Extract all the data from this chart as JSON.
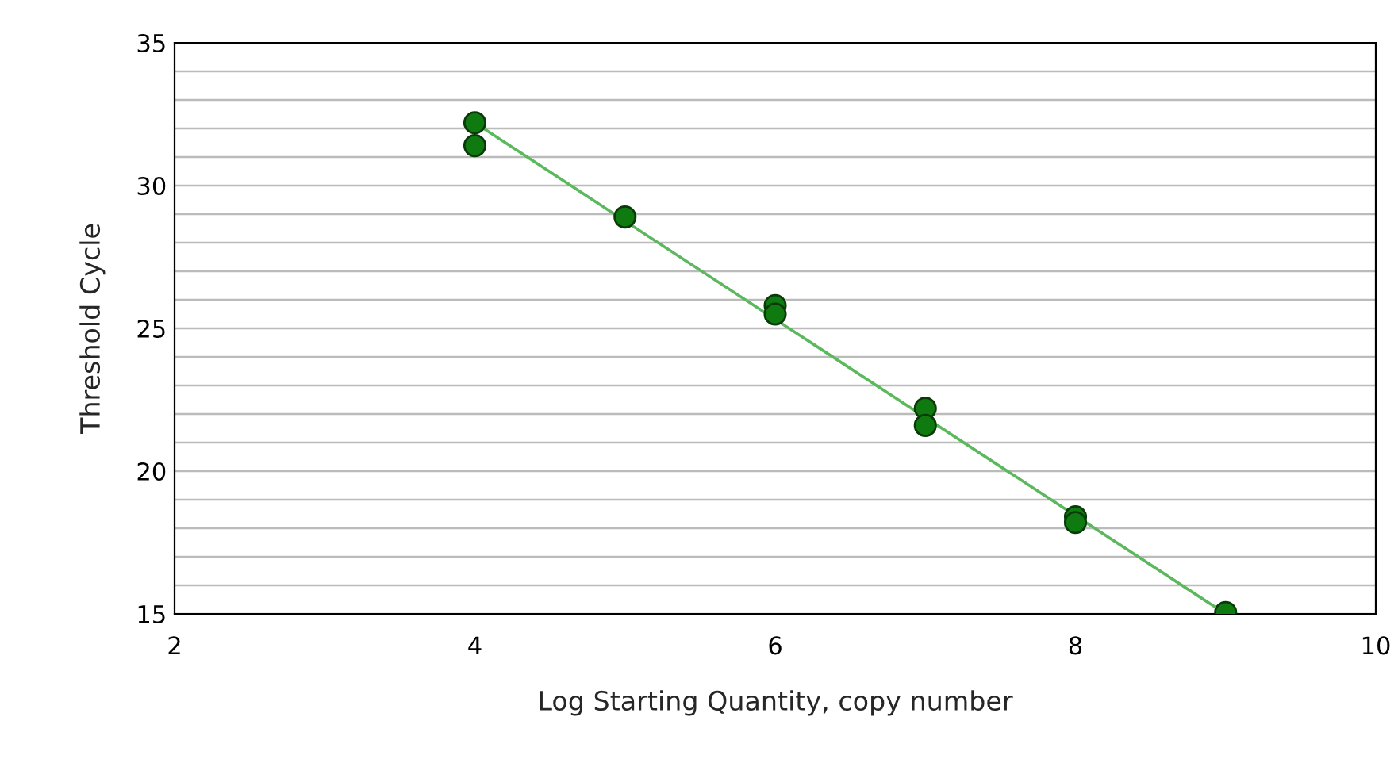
{
  "chart_data": {
    "type": "scatter",
    "xlabel": "Log Starting Quantity, copy number",
    "ylabel": "Threshold Cycle",
    "xlim": [
      2,
      10
    ],
    "xticks": [
      2,
      4,
      6,
      8,
      10
    ],
    "ylim": [
      15,
      35
    ],
    "yticks": [
      15,
      {
        "value": 16,
        "label": null
      },
      {
        "value": 17,
        "label": null
      },
      {
        "value": 18,
        "label": null
      },
      {
        "value": 19,
        "label": null
      },
      20,
      {
        "value": 21,
        "label": null
      },
      {
        "value": 22,
        "label": null
      },
      {
        "value": 23,
        "label": null
      },
      {
        "value": 24,
        "label": null
      },
      25,
      {
        "value": 26,
        "label": null
      },
      {
        "value": 27,
        "label": null
      },
      {
        "value": 28,
        "label": null
      },
      {
        "value": 29,
        "label": null
      },
      30,
      {
        "value": 31,
        "label": null
      },
      {
        "value": 32,
        "label": null
      },
      {
        "value": 33,
        "label": null
      },
      {
        "value": 34,
        "label": null
      },
      35
    ],
    "grid": "y",
    "series": [
      {
        "type": "line",
        "marker": "none",
        "color": "#5cb85c",
        "x": [
          4,
          9
        ],
        "values": [
          32.2,
          15.0
        ]
      },
      {
        "marker": "circle",
        "color": "#0f7a0f",
        "x": [
          4,
          4,
          5,
          6,
          6,
          7,
          7,
          8,
          8,
          9
        ],
        "values": [
          32.2,
          31.4,
          28.9,
          25.8,
          25.5,
          22.2,
          21.6,
          18.4,
          18.2,
          15.05
        ]
      }
    ]
  }
}
